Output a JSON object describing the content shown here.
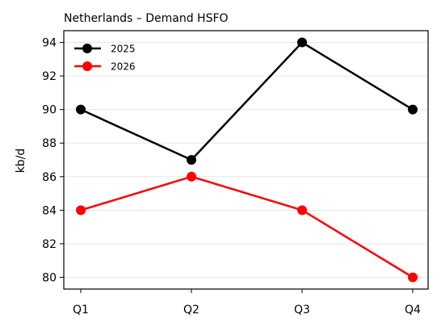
{
  "chart_data": {
    "type": "line",
    "title": "Netherlands – Demand HSFO",
    "xlabel": "",
    "ylabel": "kb/d",
    "categories": [
      "Q1",
      "Q2",
      "Q3",
      "Q4"
    ],
    "ylim": [
      79.3,
      94.7
    ],
    "yticks": [
      80,
      82,
      84,
      86,
      88,
      90,
      92,
      94
    ],
    "grid": "horizontal",
    "legend": "top-left",
    "series": [
      {
        "name": "2025",
        "color": "#000000",
        "values": [
          90,
          87,
          94,
          90
        ]
      },
      {
        "name": "2026",
        "color": "#ff0000",
        "values": [
          84,
          86,
          84,
          80
        ]
      }
    ]
  }
}
